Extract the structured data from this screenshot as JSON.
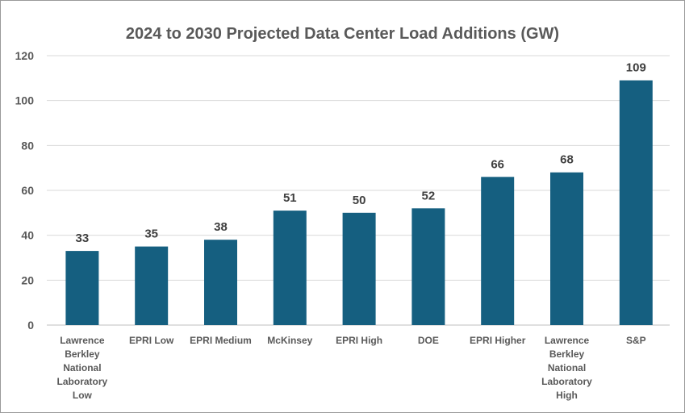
{
  "chart_data": {
    "type": "bar",
    "title": "2024 to 2030 Projected Data Center Load Additions (GW)",
    "xlabel": "",
    "ylabel": "",
    "ylim": [
      0,
      120
    ],
    "yticks": [
      0,
      20,
      40,
      60,
      80,
      100,
      120
    ],
    "grid": true,
    "bar_color": "#155f80",
    "categories": [
      "Lawrence Berkley National Laboratory Low",
      "EPRI Low",
      "EPRI Medium",
      "McKinsey",
      "EPRI High",
      "DOE",
      "EPRI Higher",
      "Lawrence Berkley National Laboratory High",
      "S&P"
    ],
    "category_lines": [
      [
        "Lawrence",
        "Berkley",
        "National",
        "Laboratory",
        "Low"
      ],
      [
        "EPRI Low"
      ],
      [
        "EPRI Medium"
      ],
      [
        "McKinsey"
      ],
      [
        "EPRI High"
      ],
      [
        "DOE"
      ],
      [
        "EPRI Higher"
      ],
      [
        "Lawrence",
        "Berkley",
        "National",
        "Laboratory",
        "High"
      ],
      [
        "S&P"
      ]
    ],
    "values": [
      33,
      35,
      38,
      51,
      50,
      52,
      66,
      68,
      109
    ]
  }
}
